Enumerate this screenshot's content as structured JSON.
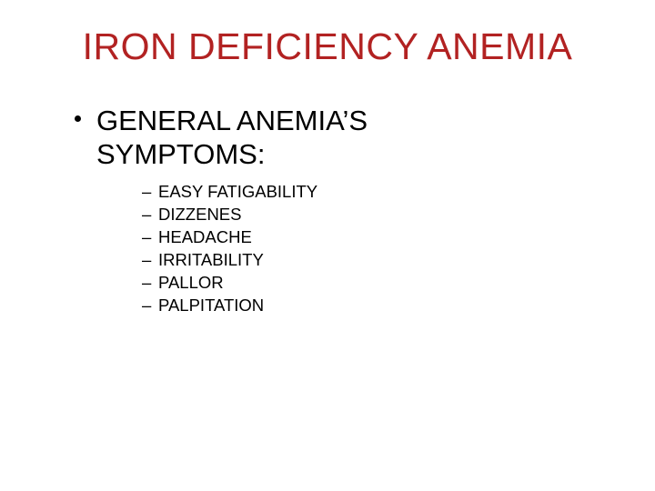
{
  "title": {
    "text": "IRON DEFICIENCY ANEMIA",
    "color": "#b22222",
    "fontsize": 41,
    "fontweight": 400
  },
  "bullet": {
    "line1": "GENERAL ANEMIA’S",
    "line2": "SYMPTOMS:",
    "color": "#000000",
    "fontsize": 31
  },
  "sub_items": {
    "0": "EASY FATIGABILITY",
    "1": "DIZZENES",
    "2": "HEADACHE",
    "3": "IRRITABILITY",
    "4": "PALLOR",
    "5": "PALPITATION"
  },
  "sub_style": {
    "color": "#000000",
    "fontsize": 18.5,
    "dash": "–"
  },
  "background_color": "#ffffff"
}
